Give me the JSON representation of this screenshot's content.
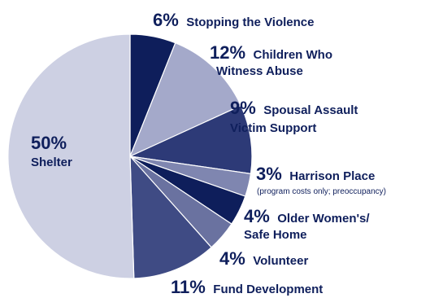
{
  "chart_data": {
    "type": "pie",
    "start_angle_deg": 0,
    "direction": "clockwise",
    "slices": [
      {
        "pct_label": "6%",
        "value": 6,
        "name": "Stopping the Violence",
        "name2": "",
        "note": "",
        "color": "#0e1e5b"
      },
      {
        "pct_label": "12%",
        "value": 12,
        "name": "Children Who",
        "name2": "Witness Abuse",
        "note": "",
        "color": "#a4a9ca"
      },
      {
        "pct_label": "9%",
        "value": 9,
        "name": "Spousal Assault",
        "name2": "Victim Support",
        "note": "",
        "color": "#2d3a77"
      },
      {
        "pct_label": "3%",
        "value": 3,
        "name": "Harrison Place",
        "name2": "",
        "note": "(program costs only; preoccupancy)",
        "color": "#7f86b0"
      },
      {
        "pct_label": "4%",
        "value": 4,
        "name": "Older Women's/",
        "name2": "Safe Home",
        "note": "",
        "color": "#0e1e5b"
      },
      {
        "pct_label": "4%",
        "value": 4,
        "name": "Volunteer",
        "name2": "",
        "note": "",
        "color": "#6a72a0"
      },
      {
        "pct_label": "11%",
        "value": 11,
        "name": "Fund Development",
        "name2": "",
        "note": "",
        "color": "#3f4b84"
      },
      {
        "pct_label": "50%",
        "value": 50,
        "name": "Shelter",
        "name2": "",
        "note": "",
        "color": "#cdd0e3"
      }
    ]
  }
}
